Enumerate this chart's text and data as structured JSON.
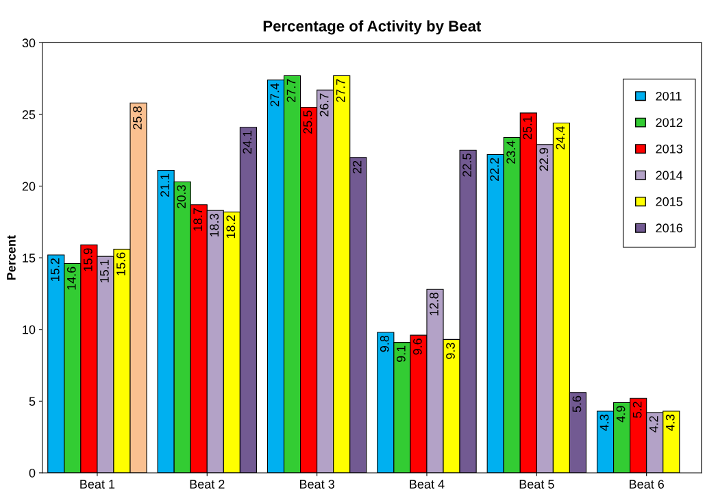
{
  "chart_data": {
    "type": "bar",
    "title": "Percentage of Activity by Beat",
    "ylabel": "Percent",
    "categories": [
      "Beat 1",
      "Beat 2",
      "Beat 3",
      "Beat 4",
      "Beat 5",
      "Beat 6"
    ],
    "series": [
      {
        "name": "2011",
        "color": "#00b0f0",
        "values": [
          15.2,
          21.1,
          27.4,
          9.8,
          22.2,
          4.3
        ]
      },
      {
        "name": "2012",
        "color": "#33cc33",
        "values": [
          14.6,
          20.3,
          27.7,
          9.1,
          23.4,
          4.9
        ]
      },
      {
        "name": "2013",
        "color": "#ff0000",
        "values": [
          15.9,
          18.7,
          25.5,
          9.6,
          25.1,
          5.2
        ]
      },
      {
        "name": "2014",
        "color": "#b3a2c7",
        "values": [
          15.1,
          18.3,
          26.7,
          12.8,
          22.9,
          4.2
        ]
      },
      {
        "name": "2015",
        "color": "#ffff00",
        "values": [
          15.6,
          18.2,
          27.7,
          9.3,
          24.4,
          4.3
        ]
      },
      {
        "name": "2016",
        "color": "#725a92",
        "colors": [
          "#fac090",
          "#725a92",
          "#725a92",
          "#725a92",
          "#725a92",
          "#725a92"
        ],
        "values": [
          25.8,
          24.1,
          22,
          22.5,
          5.6,
          null
        ]
      }
    ],
    "ylim": [
      0,
      30
    ],
    "yticks": [
      0,
      5,
      10,
      15,
      20,
      25,
      30
    ],
    "grid": false,
    "legend": "top right",
    "data_labels": true
  }
}
